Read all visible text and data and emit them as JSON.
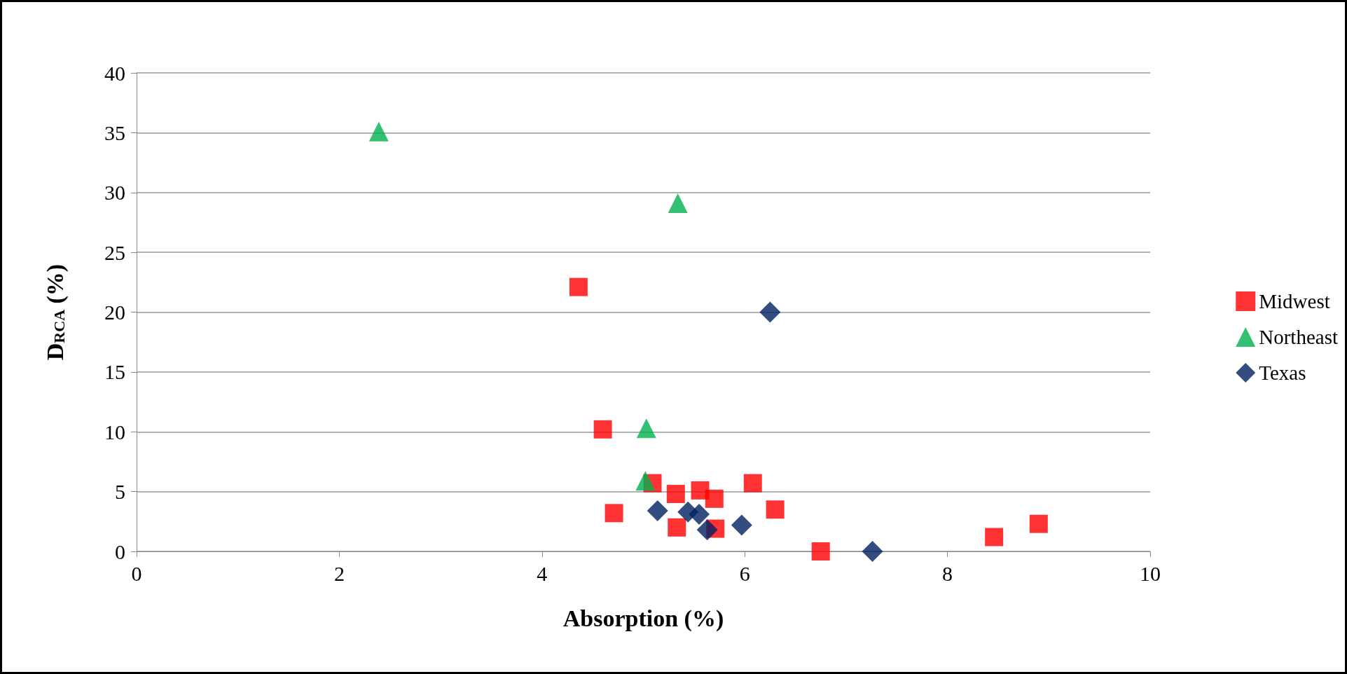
{
  "chart_data": {
    "type": "scatter",
    "xlabel": "Absorption (%)",
    "ylabel": "D$_{RCA}$ (%)",
    "xlim": [
      0,
      10
    ],
    "xticks": [
      0,
      2,
      4,
      6,
      8,
      10
    ],
    "ylim": [
      0,
      40
    ],
    "yticks": [
      0,
      5,
      10,
      15,
      20,
      25,
      30,
      35,
      40
    ],
    "grid": "y",
    "legend": "right",
    "series": [
      {
        "name": "Midwest",
        "color": "#ff0000",
        "marker": "square",
        "x": [
          4.36,
          4.6,
          5.09,
          5.32,
          5.56,
          5.7,
          6.08,
          4.71,
          5.33,
          5.71,
          6.3,
          6.75,
          8.46,
          8.9
        ],
        "values": [
          22.1,
          10.2,
          5.7,
          4.8,
          5.1,
          4.4,
          5.7,
          3.2,
          2,
          1.9,
          3.5,
          0,
          1.2,
          2.3
        ]
      },
      {
        "name": "Northeast",
        "color": "#00b050",
        "marker": "triangle",
        "x": [
          2.39,
          5.34,
          5.03,
          5.02
        ],
        "values": [
          35.1,
          29.1,
          10.3,
          5.9
        ]
      },
      {
        "name": "Texas",
        "color": "#002060",
        "marker": "diamond",
        "x": [
          6.25,
          5.14,
          5.44,
          5.55,
          5.63,
          5.97,
          7.26
        ],
        "values": [
          20,
          3.4,
          3.3,
          3.1,
          1.8,
          2.2,
          0
        ]
      }
    ]
  }
}
